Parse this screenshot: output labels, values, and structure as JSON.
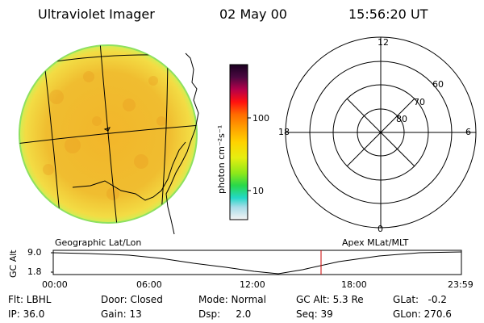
{
  "header": {
    "instrument": "Ultraviolet Imager",
    "date": "02 May 00",
    "time": "15:56:20 UT"
  },
  "colorbar": {
    "unit": "photon cm⁻²s⁻¹",
    "tick_high": "100",
    "tick_low": "10"
  },
  "left_panel": {
    "caption": "Geographic Lat/Lon"
  },
  "right_panel": {
    "caption": "Apex MLat/MLT",
    "mlt_top": "12",
    "mlt_left": "18",
    "mlt_right": "6",
    "mlt_bottom": "0",
    "lat_60": "60",
    "lat_70": "70",
    "lat_80": "80"
  },
  "altitude_plot": {
    "axis_label": "GC Alt",
    "y_top": "9.0",
    "y_bottom": "1.8",
    "x_ticks": [
      "00:00",
      "06:00",
      "12:00",
      "18:00",
      "23:59"
    ],
    "current_marker_hour": 15.94,
    "marker_color": "#cc0000"
  },
  "status": {
    "flt": "Flt: LBHL",
    "ip": "IP: 36.0",
    "door": "Door: Closed",
    "gain": "Gain: 13",
    "mode": "Mode: Normal",
    "dsp": "Dsp:     2.0",
    "gc_alt": "GC Alt: 5.3 Re",
    "seq": "Seq: 39",
    "glat": "GLat:   -0.2",
    "glon": "GLon: 270.6"
  }
}
